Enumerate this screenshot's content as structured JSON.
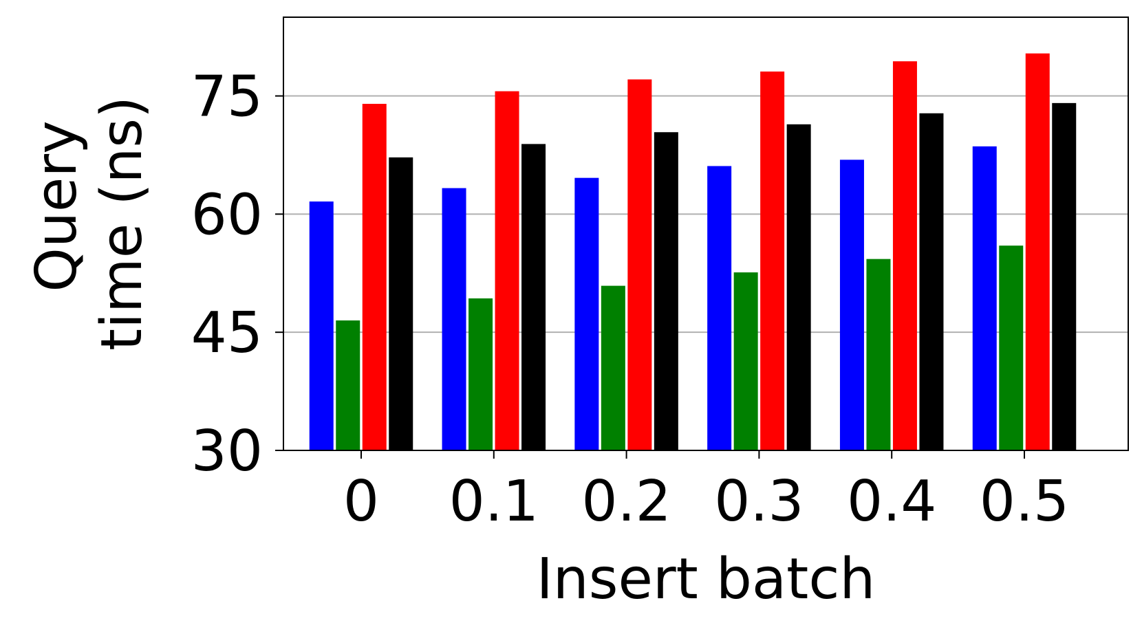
{
  "chart_data": {
    "type": "bar",
    "title": "",
    "xlabel": "Insert batch",
    "ylabel_lines": [
      "Query",
      "time (ns)"
    ],
    "categories": [
      "0",
      "0.1",
      "0.2",
      "0.3",
      "0.4",
      "0.5"
    ],
    "ylim": [
      30,
      85
    ],
    "yticks": [
      30,
      45,
      60,
      75
    ],
    "ytick_labels": [
      "30",
      "45",
      "60",
      "75"
    ],
    "grid": "horizontal",
    "legend": "none",
    "series": [
      {
        "color": "#0000ff",
        "values": [
          61.6,
          63.3,
          64.6,
          66.1,
          66.9,
          68.6
        ]
      },
      {
        "color": "#008000",
        "values": [
          46.5,
          49.3,
          50.9,
          52.6,
          54.3,
          56.0
        ]
      },
      {
        "color": "#ff0000",
        "values": [
          74.0,
          75.6,
          77.1,
          78.1,
          79.4,
          80.4
        ]
      },
      {
        "color": "#000000",
        "values": [
          67.2,
          68.9,
          70.4,
          71.4,
          72.8,
          74.1
        ]
      }
    ]
  }
}
